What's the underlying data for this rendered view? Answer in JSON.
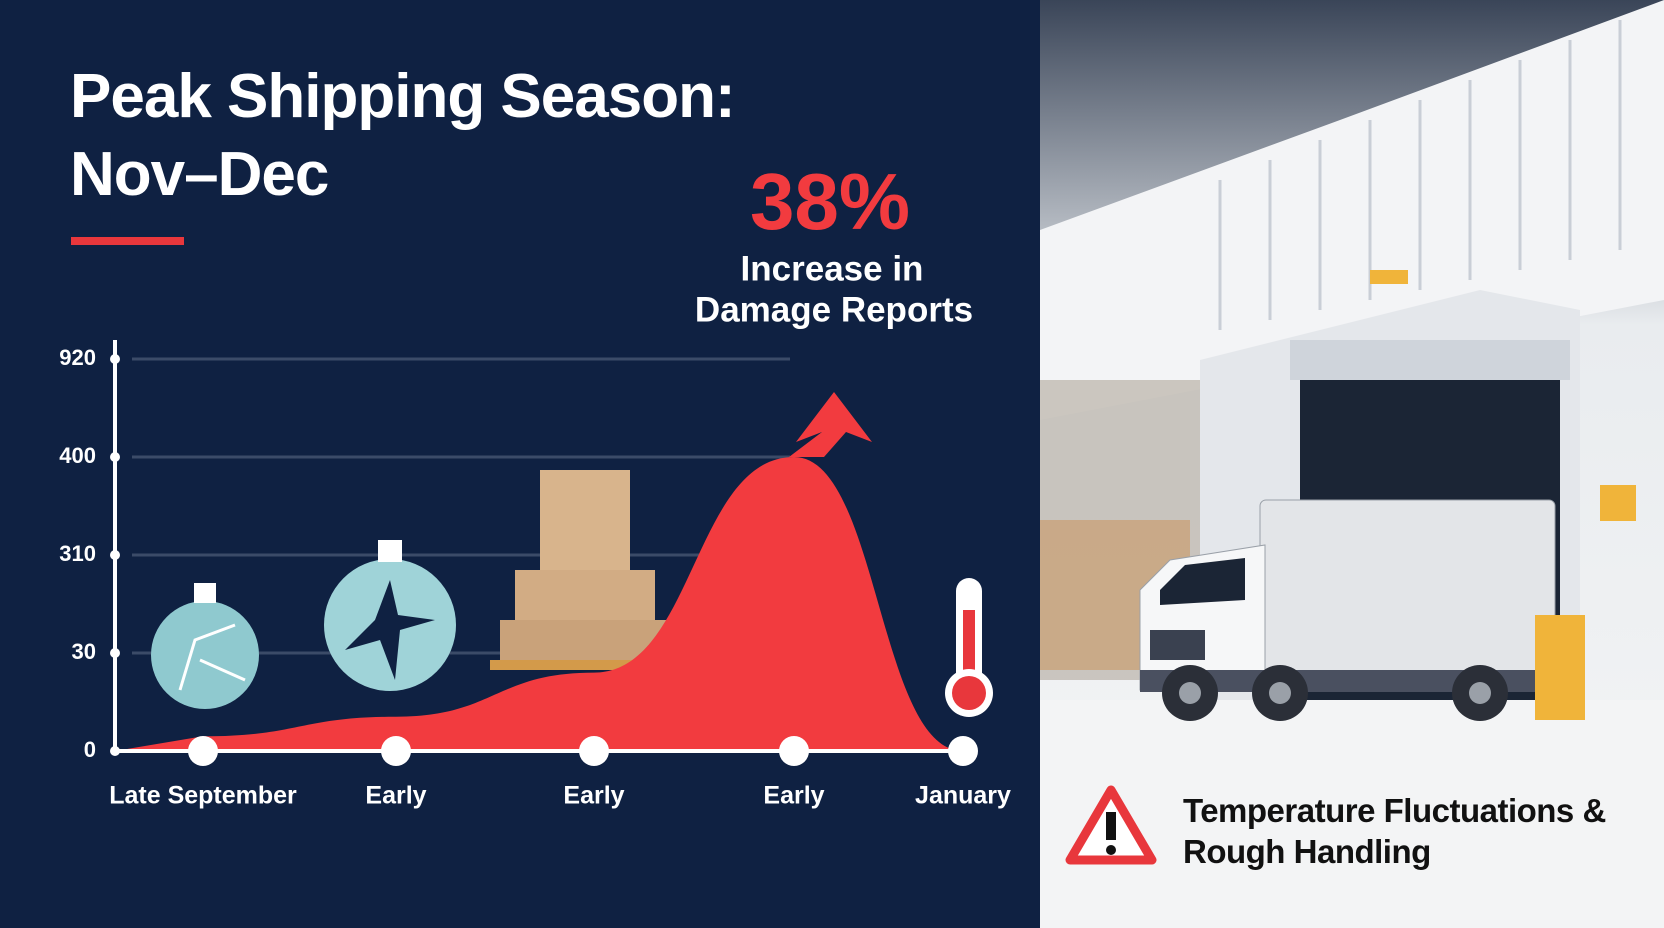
{
  "chart_data": {
    "type": "area",
    "title": "Peak Shipping Season: Nov–Dec",
    "categories": [
      "Late September",
      "Early",
      "Early",
      "Early",
      "January"
    ],
    "values": [
      0.15,
      0.35,
      0.8,
      3.0,
      0
    ],
    "color": "#f23b3f",
    "ylim": [
      0,
      4
    ],
    "yticks": [
      {
        "value": 0,
        "label": "0"
      },
      {
        "value": 1,
        "label": "30"
      },
      {
        "value": 2,
        "label": "310"
      },
      {
        "value": 3,
        "label": "400"
      },
      {
        "value": 4,
        "label": "920"
      }
    ],
    "grid": true,
    "annotation": {
      "headline": "38%",
      "lines": [
        "Increase in",
        "Damage Reports"
      ]
    }
  },
  "callout": {
    "text": "Temperature Fluctuations & Rough Handling"
  }
}
